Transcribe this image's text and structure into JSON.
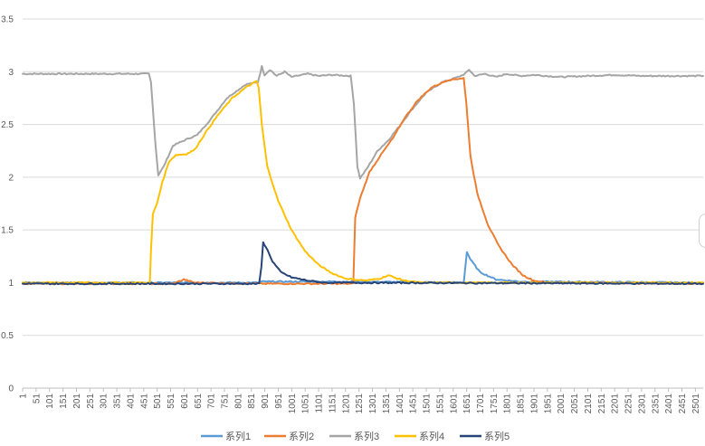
{
  "chart_data": {
    "type": "line",
    "title": "",
    "xlabel": "",
    "ylabel": "",
    "ylim": [
      0,
      3.5
    ],
    "yticks": [
      "0",
      "0.5",
      "1",
      "1.5",
      "2",
      "2.5",
      "3",
      "3.5"
    ],
    "x_range": [
      1,
      2530
    ],
    "xtick_labels": [
      "1",
      "51",
      "101",
      "151",
      "201",
      "251",
      "301",
      "351",
      "401",
      "451",
      "501",
      "551",
      "601",
      "651",
      "701",
      "751",
      "801",
      "851",
      "901",
      "951",
      "1001",
      "1051",
      "1101",
      "1151",
      "1201",
      "1251",
      "1301",
      "1351",
      "1401",
      "1451",
      "1501",
      "1551",
      "1601",
      "1651",
      "1701",
      "1751",
      "1801",
      "1851",
      "1901",
      "1951",
      "2001",
      "2051",
      "2101",
      "2151",
      "2201",
      "2251",
      "2301",
      "2351",
      "2401",
      "2451",
      "2501"
    ],
    "grid": "horizontal",
    "legend_position": "bottom",
    "series": [
      {
        "name": "系列1",
        "color": "#5b9bd5",
        "points": [
          [
            1,
            1.0
          ],
          [
            880,
            1.0
          ],
          [
            890,
            1.01
          ],
          [
            1200,
            1.01
          ],
          [
            1640,
            1.0
          ],
          [
            1652,
            1.29
          ],
          [
            1665,
            1.22
          ],
          [
            1700,
            1.1
          ],
          [
            1760,
            1.03
          ],
          [
            1850,
            1.01
          ],
          [
            2530,
            1.0
          ]
        ]
      },
      {
        "name": "系列2",
        "color": "#ed7d31",
        "points": [
          [
            1,
            0.99
          ],
          [
            560,
            0.99
          ],
          [
            600,
            1.03
          ],
          [
            640,
            1.0
          ],
          [
            900,
            0.99
          ],
          [
            1230,
            0.99
          ],
          [
            1237,
            1.62
          ],
          [
            1255,
            1.8
          ],
          [
            1290,
            2.05
          ],
          [
            1340,
            2.24
          ],
          [
            1380,
            2.38
          ],
          [
            1420,
            2.56
          ],
          [
            1470,
            2.73
          ],
          [
            1520,
            2.85
          ],
          [
            1580,
            2.92
          ],
          [
            1640,
            2.94
          ],
          [
            1650,
            2.7
          ],
          [
            1665,
            2.2
          ],
          [
            1690,
            1.85
          ],
          [
            1730,
            1.55
          ],
          [
            1770,
            1.35
          ],
          [
            1820,
            1.17
          ],
          [
            1860,
            1.07
          ],
          [
            1900,
            1.02
          ],
          [
            1950,
            1.0
          ],
          [
            2530,
            0.99
          ]
        ]
      },
      {
        "name": "系列3",
        "color": "#a5a5a5",
        "points": [
          [
            1,
            2.98
          ],
          [
            470,
            2.98
          ],
          [
            478,
            2.9
          ],
          [
            495,
            2.3
          ],
          [
            505,
            2.02
          ],
          [
            525,
            2.1
          ],
          [
            560,
            2.3
          ],
          [
            620,
            2.37
          ],
          [
            650,
            2.4
          ],
          [
            700,
            2.55
          ],
          [
            760,
            2.75
          ],
          [
            830,
            2.88
          ],
          [
            875,
            2.9
          ],
          [
            890,
            3.05
          ],
          [
            900,
            2.97
          ],
          [
            920,
            3.02
          ],
          [
            945,
            2.96
          ],
          [
            975,
            3.0
          ],
          [
            1000,
            2.95
          ],
          [
            1060,
            2.98
          ],
          [
            1100,
            2.96
          ],
          [
            1150,
            2.97
          ],
          [
            1220,
            2.96
          ],
          [
            1232,
            2.7
          ],
          [
            1245,
            2.1
          ],
          [
            1255,
            1.99
          ],
          [
            1280,
            2.08
          ],
          [
            1320,
            2.25
          ],
          [
            1360,
            2.35
          ],
          [
            1400,
            2.48
          ],
          [
            1450,
            2.65
          ],
          [
            1500,
            2.8
          ],
          [
            1560,
            2.9
          ],
          [
            1620,
            2.95
          ],
          [
            1645,
            2.98
          ],
          [
            1660,
            3.02
          ],
          [
            1680,
            2.96
          ],
          [
            1720,
            2.98
          ],
          [
            1760,
            2.95
          ],
          [
            1800,
            2.98
          ],
          [
            1850,
            2.96
          ],
          [
            1900,
            2.97
          ],
          [
            1950,
            2.96
          ],
          [
            2000,
            2.95
          ],
          [
            2100,
            2.96
          ],
          [
            2200,
            2.97
          ],
          [
            2300,
            2.96
          ],
          [
            2400,
            2.96
          ],
          [
            2530,
            2.96
          ]
        ]
      },
      {
        "name": "系列4",
        "color": "#ffc000",
        "points": [
          [
            1,
            1.0
          ],
          [
            474,
            1.0
          ],
          [
            478,
            1.3
          ],
          [
            485,
            1.65
          ],
          [
            500,
            1.75
          ],
          [
            520,
            1.95
          ],
          [
            545,
            2.15
          ],
          [
            570,
            2.21
          ],
          [
            610,
            2.22
          ],
          [
            640,
            2.26
          ],
          [
            680,
            2.42
          ],
          [
            730,
            2.6
          ],
          [
            780,
            2.75
          ],
          [
            830,
            2.85
          ],
          [
            870,
            2.91
          ],
          [
            878,
            2.85
          ],
          [
            890,
            2.5
          ],
          [
            910,
            2.1
          ],
          [
            950,
            1.78
          ],
          [
            1000,
            1.5
          ],
          [
            1050,
            1.3
          ],
          [
            1100,
            1.17
          ],
          [
            1150,
            1.09
          ],
          [
            1200,
            1.04
          ],
          [
            1230,
            1.03
          ],
          [
            1280,
            1.02
          ],
          [
            1330,
            1.04
          ],
          [
            1360,
            1.07
          ],
          [
            1380,
            1.05
          ],
          [
            1420,
            1.02
          ],
          [
            1480,
            1.0
          ],
          [
            2530,
            1.0
          ]
        ]
      },
      {
        "name": "系列5",
        "color": "#264478",
        "points": [
          [
            1,
            0.99
          ],
          [
            880,
            0.99
          ],
          [
            888,
            1.15
          ],
          [
            895,
            1.38
          ],
          [
            905,
            1.34
          ],
          [
            930,
            1.2
          ],
          [
            960,
            1.1
          ],
          [
            1000,
            1.05
          ],
          [
            1060,
            1.02
          ],
          [
            1120,
            1.0
          ],
          [
            2530,
            0.99
          ]
        ]
      }
    ]
  }
}
